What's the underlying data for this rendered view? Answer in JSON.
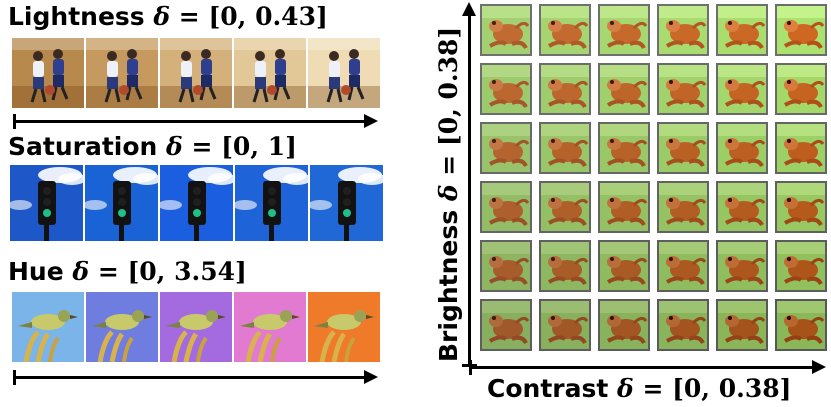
{
  "panels": {
    "lightness": {
      "label": "Lightness",
      "delta": "δ",
      "range": "= [0, 0.43]"
    },
    "saturation": {
      "label": "Saturation",
      "delta": "δ",
      "range": "= [0, 1]"
    },
    "hue": {
      "label": "Hue",
      "delta": "δ",
      "range": "= [0, 3.54]"
    }
  },
  "grid": {
    "y_label": "Brightness",
    "y_delta": "δ",
    "y_range": "= [0, 0.38]",
    "x_label": "Contrast",
    "x_delta": "δ",
    "x_range": "= [0, 0.38]",
    "rows": 6,
    "cols": 6
  },
  "colors": {
    "lightness_steps": [
      "#b7894d",
      "#c69a5e",
      "#d4b07a",
      "#e2c897",
      "#efdcb5"
    ],
    "saturation_sky": [
      "#1e58c8",
      "#1a63d6",
      "#1c5ee0",
      "#1f63d8",
      "#1f68d6"
    ],
    "hue_backgrounds": [
      "#7ab4e8",
      "#6f7ce0",
      "#a46adf",
      "#e37ad1",
      "#ee7a2a"
    ],
    "frog": "#b5652f",
    "frog_bg": "#9ac56b"
  }
}
